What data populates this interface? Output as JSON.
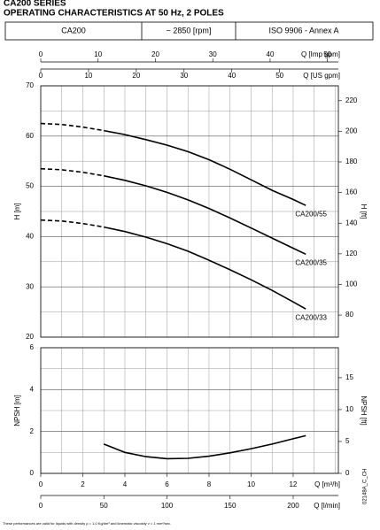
{
  "header": {
    "series_title": "CA200 SERIES",
    "subtitle": "OPERATING CHARACTERISTICS AT 50 Hz, 2 POLES",
    "model": "CA200",
    "speed": "~ 2850 [rpm]",
    "standard": "ISO 9906 - Annex A"
  },
  "footnote": "These performances are valid for liquids with density ρ = 1.0 Kg/dm³ and kinematic viscosity ν = 1 mm²/sec.",
  "code": "02148A_C_CH",
  "chart_data": [
    {
      "type": "line",
      "ylabel": "H [m]",
      "y2label": "H [ft]",
      "grid": true,
      "color": "#000000",
      "xlim": [
        0,
        14.15
      ],
      "ylim": [
        20,
        70
      ],
      "yticks": [
        20,
        30,
        40,
        50,
        60,
        70
      ],
      "y2lim": [
        65.6,
        229.7
      ],
      "y2ticks": [
        80,
        100,
        120,
        140,
        160,
        180,
        200,
        220
      ],
      "x_axes": [
        {
          "label": "Q [Imp gpm]",
          "lim": [
            0,
            51.9
          ],
          "ticks": [
            0,
            10,
            20,
            30,
            40,
            50
          ]
        },
        {
          "label": "Q [US gpm]",
          "lim": [
            0,
            62.3
          ],
          "ticks": [
            0,
            10,
            20,
            30,
            40,
            50
          ]
        }
      ],
      "series": [
        {
          "name": "CA200/55",
          "segments": [
            {
              "style": "dashed",
              "x": [
                0,
                1,
                2,
                3
              ],
              "values": [
                62.5,
                62.3,
                61.8,
                61.1
              ]
            },
            {
              "style": "solid",
              "x": [
                3,
                4,
                5,
                6,
                7,
                8,
                9,
                10,
                11,
                12,
                12.6
              ],
              "values": [
                61.1,
                60.3,
                59.3,
                58.2,
                56.9,
                55.3,
                53.4,
                51.3,
                49.2,
                47.4,
                46.2
              ]
            }
          ]
        },
        {
          "name": "CA200/35",
          "segments": [
            {
              "style": "dashed",
              "x": [
                0,
                1,
                2,
                3
              ],
              "values": [
                53.5,
                53.3,
                52.8,
                52.1
              ]
            },
            {
              "style": "solid",
              "x": [
                3,
                4,
                5,
                6,
                7,
                8,
                9,
                10,
                11,
                12,
                12.6
              ],
              "values": [
                52.1,
                51.2,
                50.1,
                48.8,
                47.3,
                45.6,
                43.7,
                41.7,
                39.7,
                37.7,
                36.5
              ]
            }
          ]
        },
        {
          "name": "CA200/33",
          "segments": [
            {
              "style": "dashed",
              "x": [
                0,
                1,
                2,
                3
              ],
              "values": [
                43.3,
                43.1,
                42.6,
                41.9
              ]
            },
            {
              "style": "solid",
              "x": [
                3,
                4,
                5,
                6,
                7,
                8,
                9,
                10,
                11,
                12,
                12.6
              ],
              "values": [
                41.9,
                41.0,
                39.9,
                38.6,
                37.1,
                35.3,
                33.4,
                31.4,
                29.3,
                27.0,
                25.6
              ]
            }
          ]
        }
      ]
    },
    {
      "type": "line",
      "ylabel": "NPSH [m]",
      "y2label": "NPSH [ft]",
      "grid": true,
      "color": "#000000",
      "xlabel": "Q [m³/h]",
      "xlim": [
        0,
        14.15
      ],
      "xticks": [
        0,
        2,
        4,
        6,
        8,
        10,
        12
      ],
      "ylim": [
        0,
        6
      ],
      "yticks": [
        0,
        2,
        4,
        6
      ],
      "y2lim": [
        0,
        19.7
      ],
      "y2ticks": [
        0,
        5,
        10,
        15
      ],
      "x_axes": [
        {
          "label": "Q [l/min]",
          "lim": [
            0,
            235.8
          ],
          "ticks": [
            0,
            50,
            100,
            150,
            200
          ]
        }
      ],
      "series": [
        {
          "segments": [
            {
              "style": "solid",
              "x": [
                3,
                4,
                5,
                6,
                7,
                8,
                9,
                10,
                11,
                12,
                12.6
              ],
              "values": [
                1.4,
                1.0,
                0.8,
                0.7,
                0.72,
                0.82,
                0.98,
                1.18,
                1.4,
                1.65,
                1.8
              ]
            }
          ]
        }
      ]
    }
  ]
}
